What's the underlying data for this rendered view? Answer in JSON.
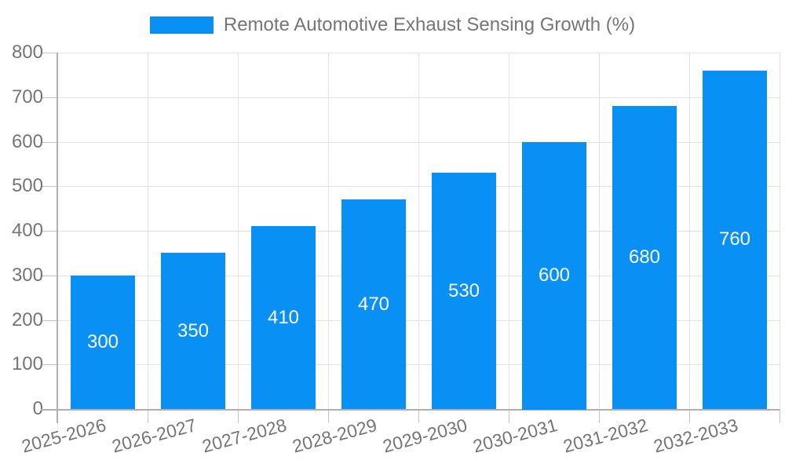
{
  "legend": {
    "label": "Remote Automotive Exhaust Sensing Growth (%)"
  },
  "chart_data": {
    "type": "bar",
    "title": "Remote Automotive Exhaust Sensing Growth (%)",
    "categories": [
      "2025-2026",
      "2026-2027",
      "2027-2028",
      "2028-2029",
      "2029-2030",
      "2030-2031",
      "2031-2032",
      "2032-2033"
    ],
    "values": [
      300,
      350,
      410,
      470,
      530,
      600,
      680,
      760
    ],
    "bar_labels": [
      "300",
      "350",
      "410",
      "470",
      "530",
      "600",
      "680",
      "760"
    ],
    "xlabel": "",
    "ylabel": "",
    "ylim": [
      0,
      800
    ],
    "ytick_step": 100,
    "yticks": [
      0,
      100,
      200,
      300,
      400,
      500,
      600,
      700,
      800
    ],
    "grid": true,
    "legend_position": "top",
    "bar_color": "#0990f5",
    "bar_label_color": "#ffffff",
    "text_color": "#757575",
    "grid_color": "#e3e3e3",
    "axis_color": "#b0b0b0"
  }
}
